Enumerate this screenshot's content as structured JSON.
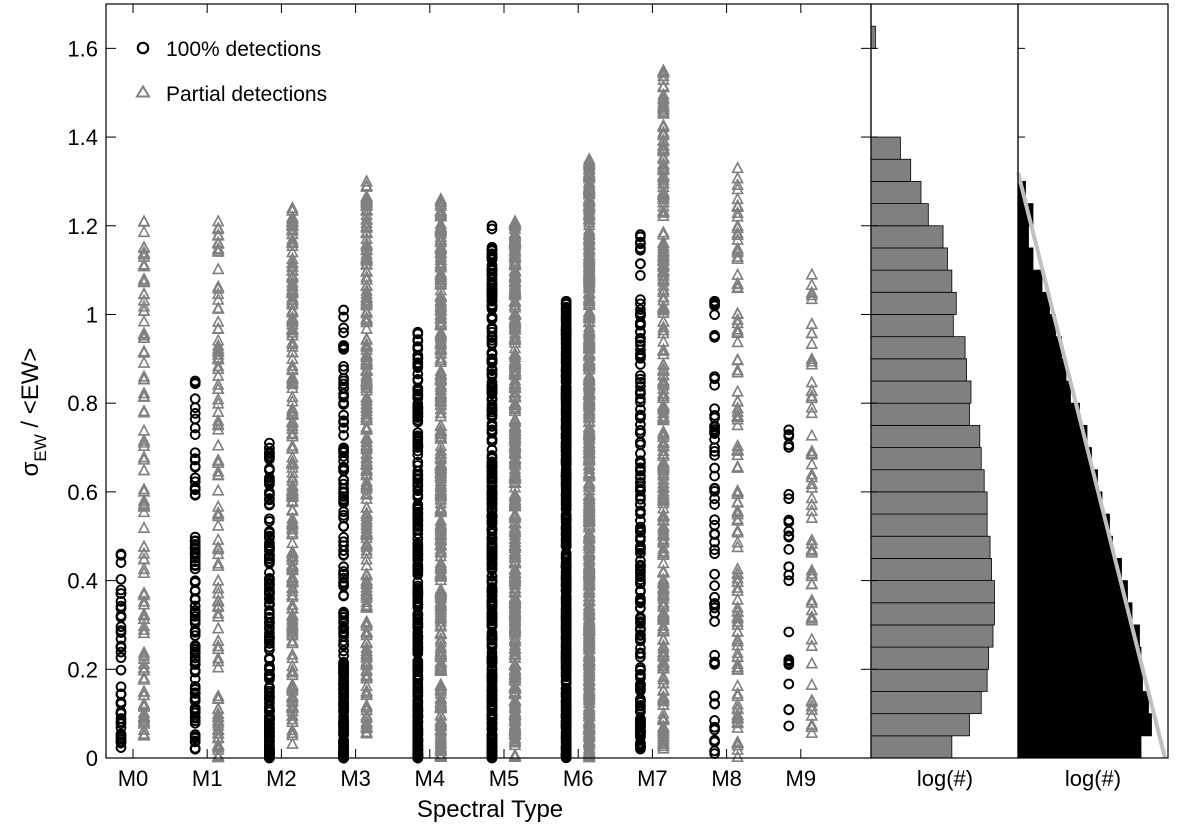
{
  "chart_data": {
    "type": "scatter",
    "xlabel": "Spectral Type",
    "ylabel": "σ",
    "ylabel_sub": "EW",
    "ylabel_rest": " / <EW>",
    "categories": [
      "M0",
      "M1",
      "M2",
      "M3",
      "M4",
      "M5",
      "M6",
      "M7",
      "M8",
      "M9"
    ],
    "ylim": [
      0,
      1.7
    ],
    "y_ticks": [
      0,
      0.2,
      0.4,
      0.6,
      0.8,
      1,
      1.2,
      1.4,
      1.6
    ],
    "y_tick_labels": [
      "0",
      "0.2",
      "0.4",
      "0.6",
      "0.8",
      "1",
      "1.2",
      "1.4",
      "1.6"
    ],
    "legend": {
      "position": "top-left",
      "entries": [
        {
          "label": "100% detections",
          "marker": "circle",
          "color": "#000000"
        },
        {
          "label": "Partial detections",
          "marker": "triangle",
          "color": "#808080"
        }
      ]
    },
    "series": [
      {
        "name": "100% detections",
        "marker": "circle",
        "color": "#000000",
        "counts": [
          40,
          110,
          180,
          200,
          320,
          420,
          600,
          180,
          60,
          25
        ],
        "ranges": [
          [
            0.01,
            0.46
          ],
          [
            0.02,
            0.85
          ],
          [
            0.0,
            0.71
          ],
          [
            0.0,
            1.01
          ],
          [
            0.0,
            0.96
          ],
          [
            0.0,
            1.2
          ],
          [
            0.0,
            1.03
          ],
          [
            0.02,
            1.18
          ],
          [
            0.01,
            1.03
          ],
          [
            0.07,
            0.74
          ]
        ],
        "skew": [
          1.6,
          1.6,
          1.8,
          2.2,
          1.8,
          1.5,
          1.2,
          1.4,
          1.2,
          1.0
        ],
        "extremes": [
          [
            0.46
          ],
          [
            0.85,
            0.61
          ],
          [
            0.71
          ],
          [
            1.01,
            0.68
          ],
          [
            0.96,
            0.94,
            0.77
          ],
          [
            1.2,
            1.05
          ],
          [
            1.03
          ],
          [
            1.18,
            1.0
          ],
          [
            1.03
          ],
          [
            0.74
          ]
        ]
      },
      {
        "name": "Partial detections",
        "marker": "triangle",
        "color": "#808080",
        "counts": [
          100,
          110,
          220,
          260,
          320,
          400,
          500,
          300,
          120,
          60
        ],
        "ranges": [
          [
            0.05,
            1.21
          ],
          [
            0.0,
            1.21
          ],
          [
            0.03,
            1.24
          ],
          [
            0.05,
            1.3
          ],
          [
            0.0,
            1.26
          ],
          [
            0.0,
            1.21
          ],
          [
            0.0,
            1.35
          ],
          [
            0.02,
            1.55
          ],
          [
            0.0,
            1.33
          ],
          [
            0.05,
            1.09
          ]
        ],
        "skew": [
          1.3,
          1.2,
          1.1,
          1.0,
          1.0,
          1.0,
          1.0,
          1.0,
          1.1,
          1.1
        ],
        "extremes": [
          [
            1.21,
            1.13
          ],
          [
            1.21
          ],
          [
            1.24
          ],
          [
            1.3
          ],
          [
            1.26
          ],
          [
            1.21
          ],
          [
            1.35
          ],
          [
            1.55
          ],
          [
            1.33
          ],
          [
            1.09
          ]
        ]
      }
    ],
    "histograms": [
      {
        "xlabel": "log(#)",
        "fill": "#808080",
        "bin_width": 0.05,
        "bin_start": 0,
        "values": [
          0.55,
          0.67,
          0.75,
          0.79,
          0.8,
          0.83,
          0.84,
          0.84,
          0.82,
          0.81,
          0.79,
          0.79,
          0.77,
          0.75,
          0.74,
          0.67,
          0.68,
          0.65,
          0.64,
          0.56,
          0.58,
          0.55,
          0.52,
          0.49,
          0.39,
          0.34,
          0.27,
          0.2,
          0.0,
          0.0,
          0.0,
          0.0,
          0.03
        ],
        "xmax": 1.0
      },
      {
        "xlabel": "log(#)",
        "fill": "#000000",
        "bin_width": 0.05,
        "bin_start": 0,
        "values": [
          0.82,
          0.89,
          0.87,
          0.83,
          0.82,
          0.81,
          0.76,
          0.73,
          0.69,
          0.63,
          0.61,
          0.56,
          0.53,
          0.49,
          0.46,
          0.41,
          0.35,
          0.32,
          0.29,
          0.25,
          0.21,
          0.16,
          0.1,
          0.07,
          0.1,
          0.05,
          0.0,
          0.0,
          0.0,
          0.0,
          0.0,
          0.0,
          0.0
        ],
        "xmax": 1.0,
        "fit_line": {
          "color": "#c0c0c0",
          "y_at_x0": 1.32,
          "x_at_y0": 0.98
        }
      }
    ]
  }
}
